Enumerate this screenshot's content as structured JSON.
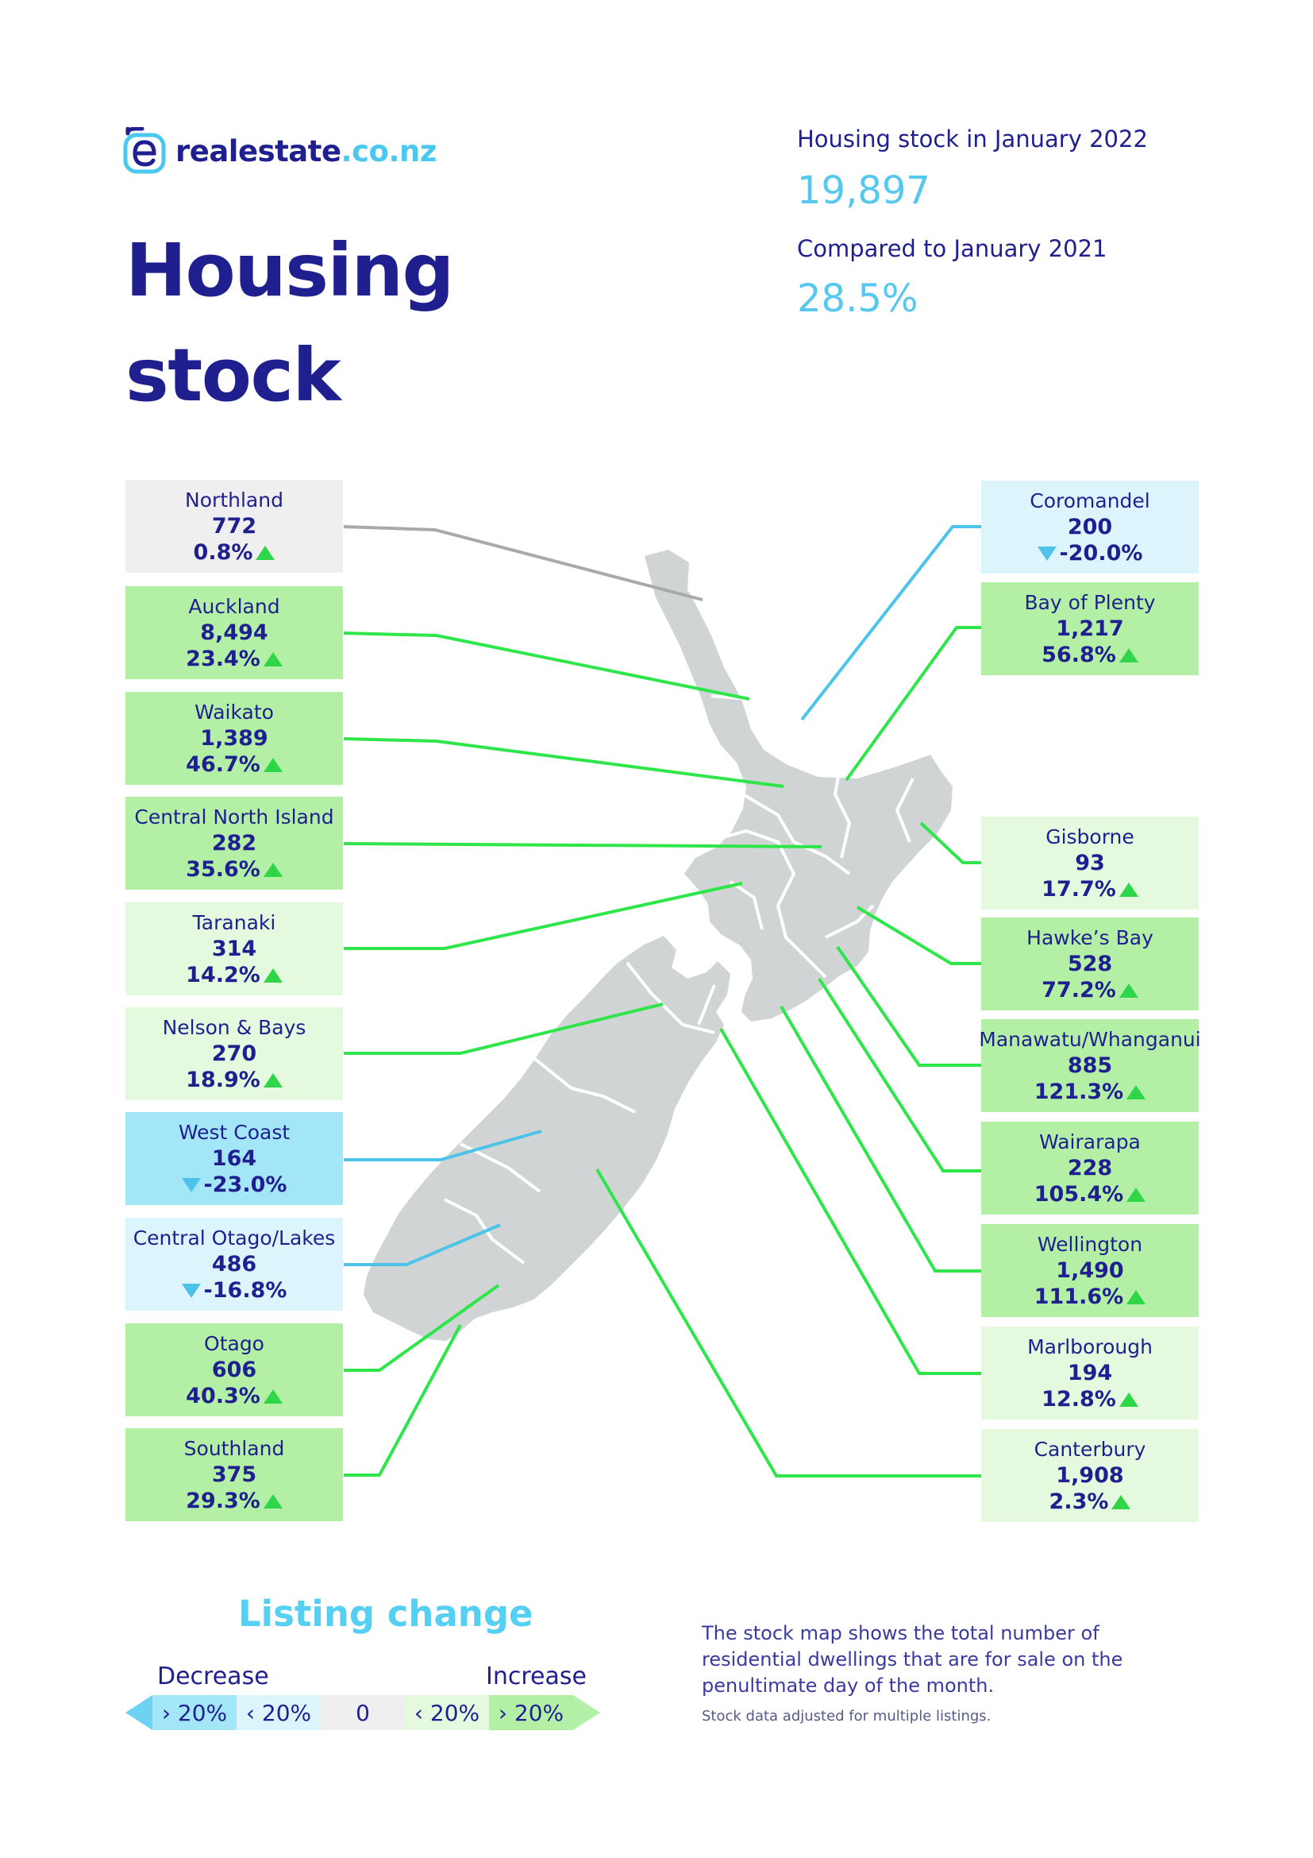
{
  "brand": {
    "name": "realestate",
    "tld": ".co.nz"
  },
  "title": {
    "line1": "Housing",
    "line2": "stock"
  },
  "header": {
    "stock_label": "Housing stock in January 2022",
    "stock_value": "19,897",
    "compare_label": "Compared to January 2021",
    "compare_value": "28.5%"
  },
  "colors": {
    "navy": "#1f1f8f",
    "accent_blue": "#56c8ef",
    "line_green": "#2ee64a",
    "line_blue": "#4cc4ea",
    "line_grey": "#a6aaaa",
    "map_grey": "#d0d4d4",
    "box_neutral": "#efefef",
    "box_inc_high": "#b3f0a6",
    "box_inc_low": "#e4f9de",
    "box_dec_high": "#a2e6f8",
    "box_dec_low": "#dcf5fc"
  },
  "regions": {
    "northland": {
      "name": "Northland",
      "stock": "772",
      "change": "0.8%",
      "direction": "up"
    },
    "auckland": {
      "name": "Auckland",
      "stock": "8,494",
      "change": "23.4%",
      "direction": "up"
    },
    "waikato": {
      "name": "Waikato",
      "stock": "1,389",
      "change": "46.7%",
      "direction": "up"
    },
    "central_north_island": {
      "name": "Central North Island",
      "stock": "282",
      "change": "35.6%",
      "direction": "up"
    },
    "taranaki": {
      "name": "Taranaki",
      "stock": "314",
      "change": "14.2%",
      "direction": "up"
    },
    "nelson_bays": {
      "name": "Nelson & Bays",
      "stock": "270",
      "change": "18.9%",
      "direction": "up"
    },
    "west_coast": {
      "name": "West Coast",
      "stock": "164",
      "change": "-23.0%",
      "direction": "down"
    },
    "central_otago": {
      "name": "Central Otago/Lakes",
      "stock": "486",
      "change": "-16.8%",
      "direction": "down"
    },
    "otago": {
      "name": "Otago",
      "stock": "606",
      "change": "40.3%",
      "direction": "up"
    },
    "southland": {
      "name": "Southland",
      "stock": "375",
      "change": "29.3%",
      "direction": "up"
    },
    "coromandel": {
      "name": "Coromandel",
      "stock": "200",
      "change": "-20.0%",
      "direction": "down"
    },
    "bay_of_plenty": {
      "name": "Bay of Plenty",
      "stock": "1,217",
      "change": "56.8%",
      "direction": "up"
    },
    "gisborne": {
      "name": "Gisborne",
      "stock": "93",
      "change": "17.7%",
      "direction": "up"
    },
    "hawkes_bay": {
      "name": "Hawke’s Bay",
      "stock": "528",
      "change": "77.2%",
      "direction": "up"
    },
    "manawatu": {
      "name": "Manawatu/Whanganui",
      "stock": "885",
      "change": "121.3%",
      "direction": "up"
    },
    "wairarapa": {
      "name": "Wairarapa",
      "stock": "228",
      "change": "105.4%",
      "direction": "up"
    },
    "wellington": {
      "name": "Wellington",
      "stock": "1,490",
      "change": "111.6%",
      "direction": "up"
    },
    "marlborough": {
      "name": "Marlborough",
      "stock": "194",
      "change": "12.8%",
      "direction": "up"
    },
    "canterbury": {
      "name": "Canterbury",
      "stock": "1,908",
      "change": "2.3%",
      "direction": "up"
    }
  },
  "legend": {
    "title": "Listing change",
    "decrease": "Decrease",
    "increase": "Increase",
    "segments": [
      "› 20%",
      "‹ 20%",
      "0",
      "‹ 20%",
      "› 20%"
    ]
  },
  "note": {
    "text": "The stock map shows the total number of residential dwellings that are for sale on the penultimate day of the month.",
    "small": "Stock data adjusted for multiple listings."
  }
}
